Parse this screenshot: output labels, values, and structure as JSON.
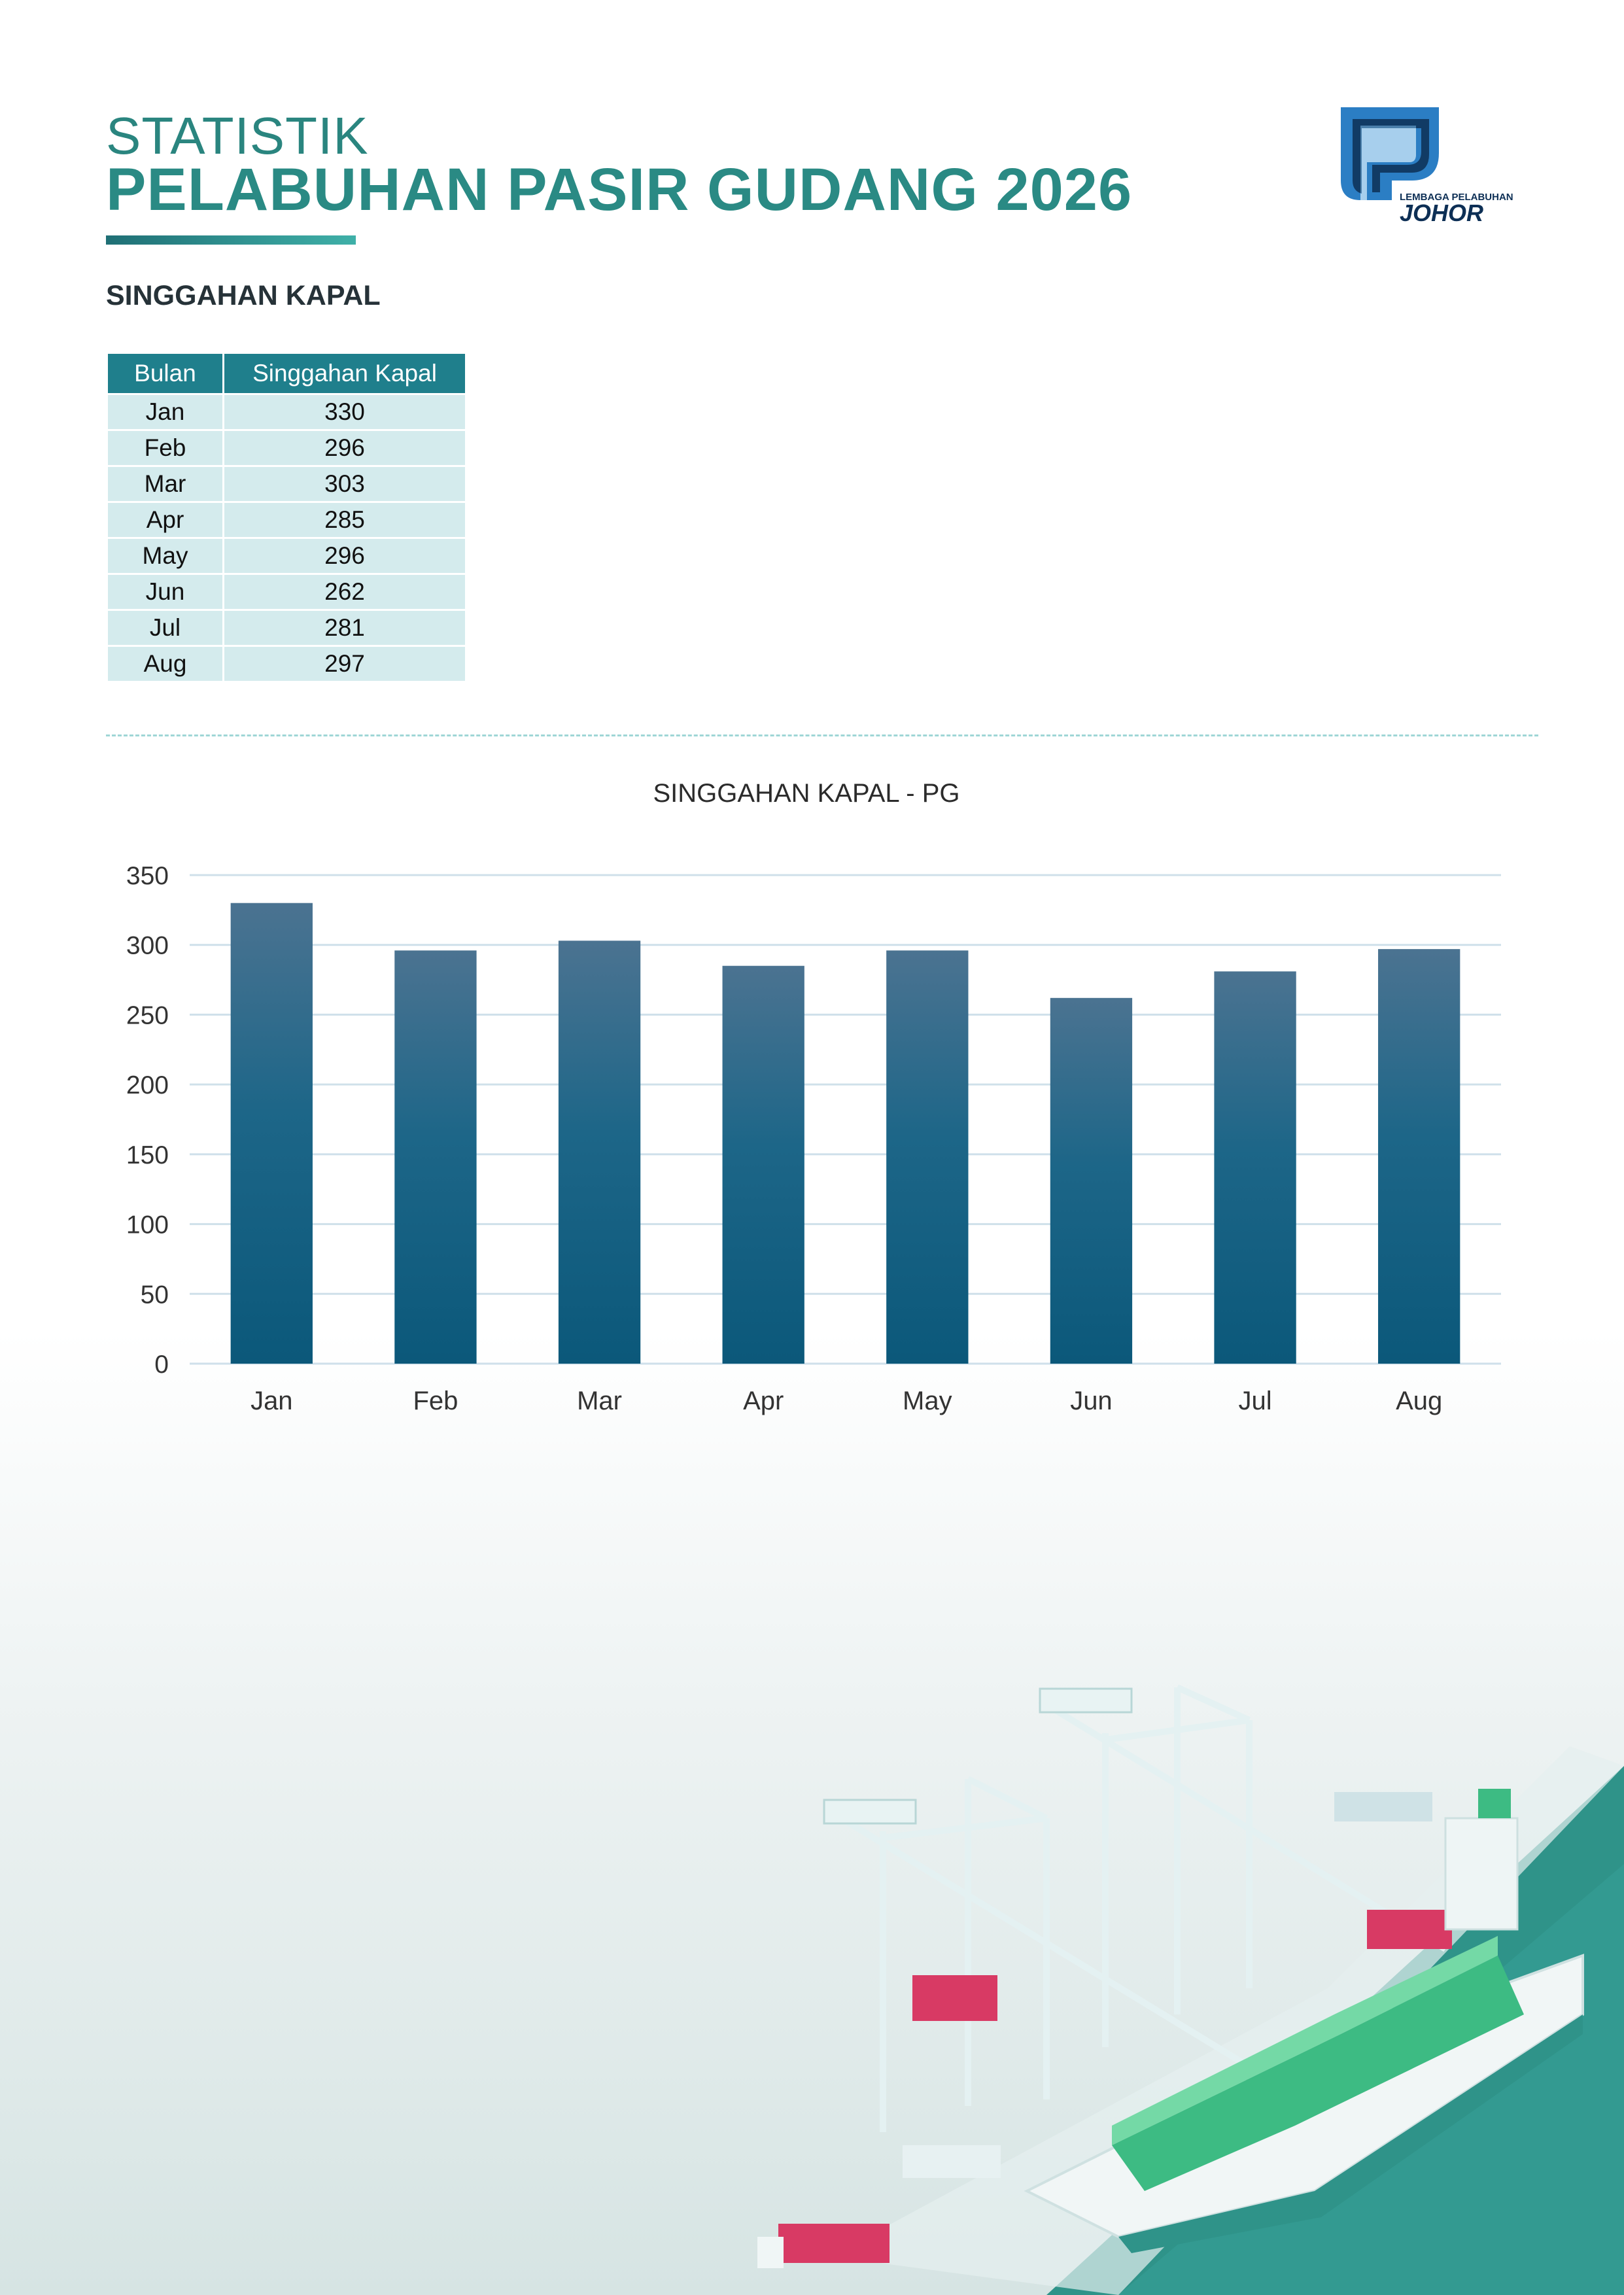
{
  "header": {
    "title_line1": "STATISTIK",
    "title_line2": "PELABUHAN PASIR GUDANG 2026",
    "logo_text_small": "LEMBAGA PELABUHAN",
    "logo_text_big": "JOHOR"
  },
  "section": {
    "heading": "SINGGAHAN KAPAL"
  },
  "table": {
    "headers": [
      "Bulan",
      "Singgahan Kapal"
    ],
    "rows": [
      [
        "Jan",
        "330"
      ],
      [
        "Feb",
        "296"
      ],
      [
        "Mar",
        "303"
      ],
      [
        "Apr",
        "285"
      ],
      [
        "May",
        "296"
      ],
      [
        "Jun",
        "262"
      ],
      [
        "Jul",
        "281"
      ],
      [
        "Aug",
        "297"
      ]
    ]
  },
  "colors": {
    "accent": "#2a8a84",
    "table_header": "#1f7f8c",
    "table_cell": "#d4ebed",
    "bar_top": "#4b7391",
    "bar_bottom": "#0b587a"
  },
  "chart_data": {
    "type": "bar",
    "title": "SINGGAHAN KAPAL - PG",
    "categories": [
      "Jan",
      "Feb",
      "Mar",
      "Apr",
      "May",
      "Jun",
      "Jul",
      "Aug"
    ],
    "values": [
      330,
      296,
      303,
      285,
      296,
      262,
      281,
      297
    ],
    "xlabel": "",
    "ylabel": "",
    "ylim": [
      0,
      350
    ],
    "yticks": [
      0,
      50,
      100,
      150,
      200,
      250,
      300,
      350
    ],
    "grid": true,
    "legend": "none"
  }
}
